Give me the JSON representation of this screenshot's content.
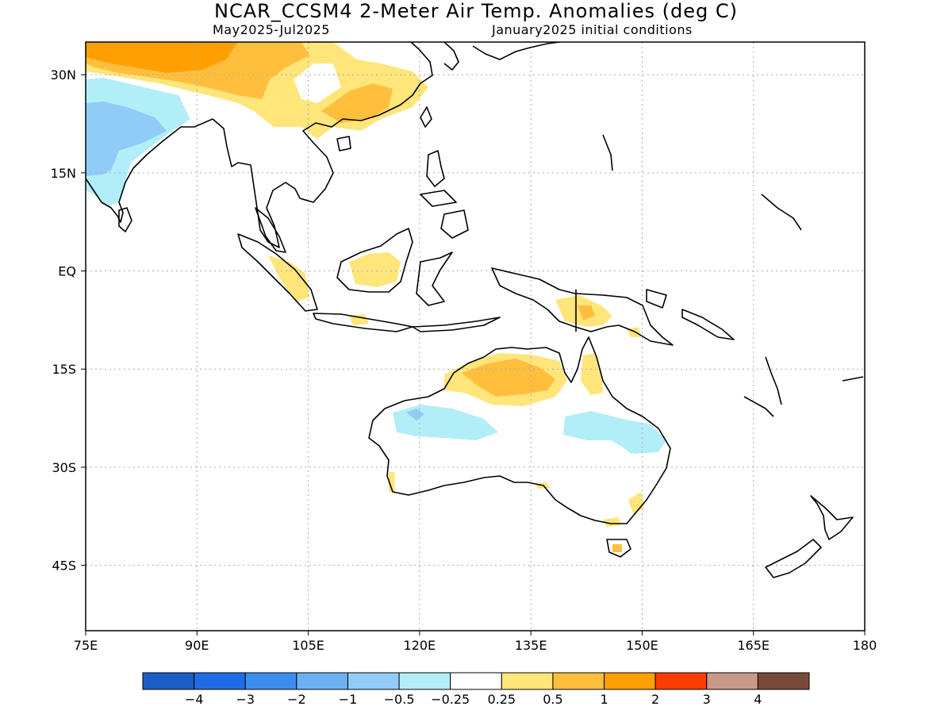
{
  "title": "NCAR_CCSM4 2-Meter Air Temp. Anomalies (deg C)",
  "subtitle_left": "May2025-Jul2025",
  "subtitle_right": "January2025 initial conditions",
  "map": {
    "lon_range": [
      75,
      180
    ],
    "lat_range": [
      -55,
      35
    ],
    "lon_ticks": [
      {
        "value": 75,
        "label": "75E"
      },
      {
        "value": 90,
        "label": "90E"
      },
      {
        "value": 105,
        "label": "105E"
      },
      {
        "value": 120,
        "label": "120E"
      },
      {
        "value": 135,
        "label": "135E"
      },
      {
        "value": 150,
        "label": "150E"
      },
      {
        "value": 165,
        "label": "165E"
      },
      {
        "value": 180,
        "label": "180"
      }
    ],
    "lat_ticks": [
      {
        "value": 30,
        "label": "30N"
      },
      {
        "value": 15,
        "label": "15N"
      },
      {
        "value": 0,
        "label": "EQ"
      },
      {
        "value": -15,
        "label": "15S"
      },
      {
        "value": -30,
        "label": "30S"
      },
      {
        "value": -45,
        "label": "45S"
      }
    ],
    "grid": true
  },
  "colorbar": {
    "colors": [
      "#1a5fc8",
      "#1f6ce6",
      "#3b8ef0",
      "#6cb0f4",
      "#90ccf7",
      "#b2eef8",
      "#ffffff",
      "#ffe57a",
      "#ffbe3c",
      "#ffa000",
      "#ff3c00",
      "#c89888",
      "#7a4a38"
    ],
    "labels": [
      "−4",
      "−3",
      "−2",
      "−1",
      "−0.5",
      "−0.25",
      "0.25",
      "0.5",
      "1",
      "2",
      "3",
      "4"
    ]
  },
  "anomaly_regions": [
    {
      "name": "china-orange",
      "level": "1 to 2",
      "color": "#ffa000"
    },
    {
      "name": "china-light-orange",
      "level": "0.5 to 1",
      "color": "#ffbe3c"
    },
    {
      "name": "india-cool",
      "level": "-1 to -0.5",
      "color": "#90ccf7"
    },
    {
      "name": "india-cooler",
      "level": "-0.5 to -0.25",
      "color": "#b2eef8"
    },
    {
      "name": "australia-warm",
      "level": "0.5 to 1",
      "color": "#ffbe3c"
    },
    {
      "name": "australia-cool",
      "level": "-0.5 to -0.25",
      "color": "#b2eef8"
    }
  ]
}
